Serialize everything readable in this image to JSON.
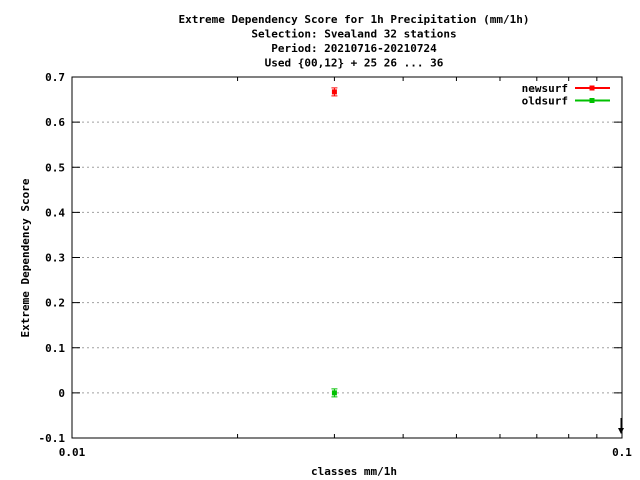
{
  "chart_data": {
    "type": "scatter",
    "title_lines": [
      "Extreme Dependency Score  for 1h Precipitation (mm/1h)",
      "Selection: Svealand     32 stations",
      "Period: 20210716-20210724",
      "Used {00,12} + 25 26 ... 36"
    ],
    "xlabel": "classes mm/1h",
    "ylabel": "Extreme Dependency Score",
    "x_scale": "log",
    "xlim": [
      0.01,
      0.1
    ],
    "ylim": [
      -0.1,
      0.7
    ],
    "x_ticks": [
      {
        "value": 0.01,
        "label": "0.01"
      },
      {
        "value": 0.1,
        "label": "0.1"
      }
    ],
    "y_ticks": [
      {
        "value": -0.1,
        "label": "-0.1"
      },
      {
        "value": 0,
        "label": "0"
      },
      {
        "value": 0.1,
        "label": "0.1"
      },
      {
        "value": 0.2,
        "label": "0.2"
      },
      {
        "value": 0.3,
        "label": "0.3"
      },
      {
        "value": 0.4,
        "label": "0.4"
      },
      {
        "value": 0.5,
        "label": "0.5"
      },
      {
        "value": 0.6,
        "label": "0.6"
      },
      {
        "value": 0.7,
        "label": "0.7"
      }
    ],
    "grid": true,
    "legend_position": "top-right",
    "series": [
      {
        "name": "newsurf",
        "color": "#ff0000",
        "points": [
          {
            "x": 0.03,
            "y": 0.667
          }
        ]
      },
      {
        "name": "oldsurf",
        "color": "#00c000",
        "points": [
          {
            "x": 0.03,
            "y": 0.0
          }
        ]
      }
    ]
  }
}
